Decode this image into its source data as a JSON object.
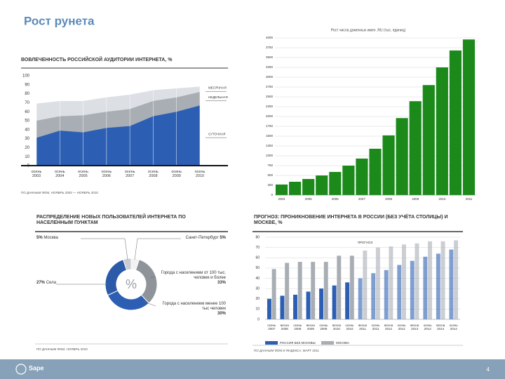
{
  "title": "Рост рунета",
  "logo": "Sape",
  "page_number": "4",
  "chart_data": [
    {
      "type": "area",
      "title": "ВОВЛЕЧЕННОСТЬ РОССИЙСКОЙ АУДИТОРИИ ИНТЕРНЕТА, %",
      "categories": [
        "осень 2003",
        "осень 2004",
        "осень 2005",
        "осень 2006",
        "осень 2007",
        "осень 2008",
        "осень 2009",
        "осень 2010"
      ],
      "series": [
        {
          "name": "МЕСЯЧНАЯ",
          "color": "#dcdfe4",
          "values": [
            69,
            72,
            72,
            76,
            79,
            84,
            86,
            88
          ]
        },
        {
          "name": "НЕДЕЛЬНАЯ",
          "color": "#a8aeb4",
          "values": [
            50,
            55,
            56,
            60,
            63,
            72,
            76,
            82
          ]
        },
        {
          "name": "СУТОЧНАЯ",
          "color": "#2c5fb3",
          "values": [
            31,
            39,
            37,
            42,
            44,
            55,
            60,
            67
          ]
        }
      ],
      "ylim": [
        0,
        100
      ],
      "yticks": [
        0,
        10,
        20,
        30,
        40,
        50,
        60,
        70,
        80,
        90,
        100
      ],
      "source": "ПО ДАННЫМ ФОМ, НОЯБРЬ 2003 — НОЯБРЬ 2010"
    },
    {
      "type": "bar",
      "title": "Рост числа доменных имен .RU (тыс. единиц)",
      "categories": [
        "2004",
        null,
        "2005",
        null,
        "2006",
        null,
        "2007",
        null,
        "2008",
        null,
        "2009",
        null,
        "2010",
        null,
        "2011"
      ],
      "values": [
        270,
        340,
        410,
        500,
        590,
        750,
        930,
        1180,
        1520,
        1960,
        2390,
        2800,
        3250,
        3680,
        3960
      ],
      "color": "#1b8a1b",
      "ylim": [
        0,
        4000
      ],
      "yticks": [
        0,
        250,
        500,
        750,
        1000,
        1250,
        1500,
        1750,
        2000,
        2250,
        2500,
        2750,
        3000,
        3250,
        3500,
        3750,
        4000
      ],
      "grid": true
    },
    {
      "type": "pie",
      "title": "РАСПРЕДЕЛЕНИЕ НОВЫХ ПОЛЬЗОВАТЕЛЕЙ ИНТЕРНЕТА ПО НАСЕЛЕННЫМ ПУНКТАМ",
      "center_label": "%",
      "categories": [
        "Москва",
        "Санкт-Петербург",
        "Города с населением от 100 тыс. человек и более",
        "Города с населением менее 100 тыс человек",
        "Села"
      ],
      "values": [
        5,
        5,
        33,
        30,
        27
      ],
      "value_labels": [
        "5%",
        "5%",
        "33%",
        "30%",
        "27%"
      ],
      "colors": [
        "#c9ccd0",
        "#f2f2f2",
        "#8e9499",
        "#2c5fb3",
        "#2a5aa8"
      ],
      "source": "ПО ДАННЫМ ФОМ, НОЯБРЬ 2010"
    },
    {
      "type": "bar",
      "title": "ПРОГНОЗ: ПРОНИКНОВЕНИЕ ИНТЕРНЕТА В РОССИИ (БЕЗ УЧЁТА СТОЛИЦЫ) И МОСКВЕ, %",
      "categories": [
        "осень 2007",
        "весна 2008",
        "осень 2008",
        "весна 2009",
        "осень 2009",
        "весна 2010",
        "осень 2010",
        "весна 2011",
        "осень 2011",
        "весна 2012",
        "осень 2012",
        "весна 2013",
        "осень 2013",
        "весна 2014",
        "осень 2014"
      ],
      "series": [
        {
          "name": "РОССИЯ БЕЗ МОСКВЫ",
          "color": "#2c5fb3",
          "values": [
            20,
            23,
            24,
            27,
            30,
            33,
            36,
            40,
            45,
            48,
            53,
            57,
            61,
            64,
            68
          ]
        },
        {
          "name": "МОСКВА",
          "color": "#a8aeb4",
          "values": [
            49,
            55,
            56,
            56,
            56,
            62,
            62,
            67,
            70,
            71,
            73,
            74,
            76,
            76,
            77
          ]
        }
      ],
      "forecast_label": "ПРОГНОЗ",
      "forecast_from": "весна 2011",
      "ylim": [
        0,
        80
      ],
      "yticks": [
        0,
        10,
        20,
        30,
        40,
        50,
        60,
        70,
        80
      ],
      "grid": true,
      "source": "ПО ДАННЫМ ФОМ И ЯНДЕКСА, МАРТ 2011"
    }
  ]
}
